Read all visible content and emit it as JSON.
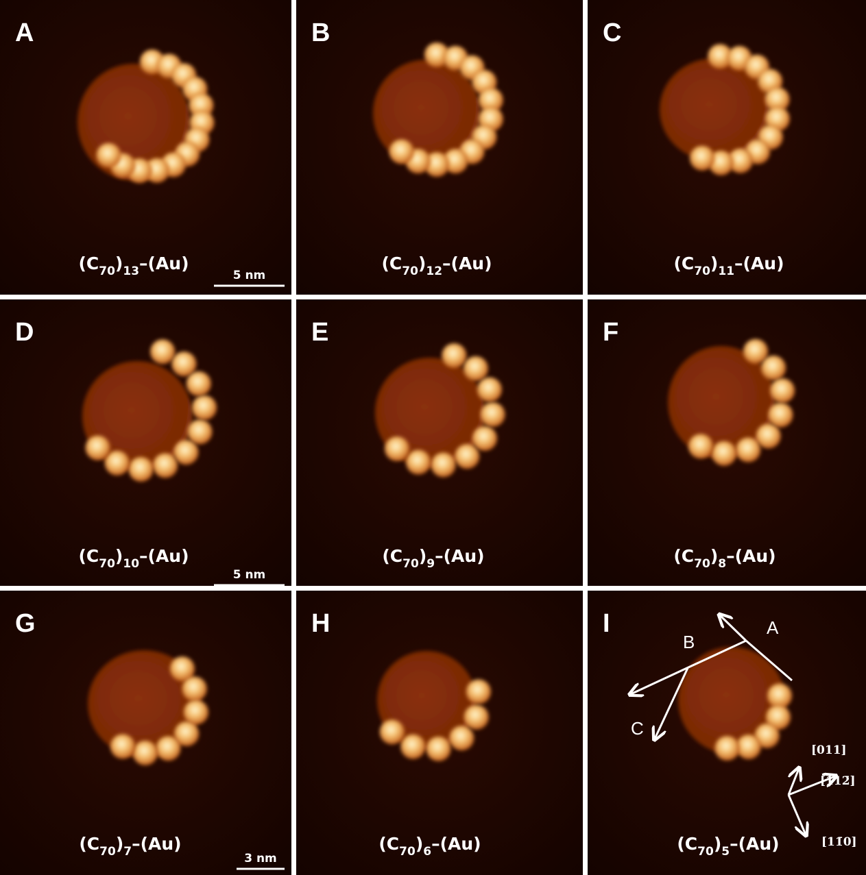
{
  "panels": [
    {
      "letter": "A",
      "formula": {
        "open": "(C",
        "carbon": "70",
        "close": ")",
        "count": "13",
        "tail": "–(Au)"
      },
      "scale_bar": "5 nm"
    },
    {
      "letter": "B",
      "formula": {
        "open": "(C",
        "carbon": "70",
        "close": ")",
        "count": "12",
        "tail": "–(Au)"
      }
    },
    {
      "letter": "C",
      "formula": {
        "open": "(C",
        "carbon": "70",
        "close": ")",
        "count": "11",
        "tail": "–(Au)"
      }
    },
    {
      "letter": "D",
      "formula": {
        "open": "(C",
        "carbon": "70",
        "close": ")",
        "count": "10",
        "tail": "–(Au)"
      },
      "scale_bar": "5 nm"
    },
    {
      "letter": "E",
      "formula": {
        "open": "(C",
        "carbon": "70",
        "close": ")",
        "count": "9",
        "tail": "–(Au)"
      }
    },
    {
      "letter": "F",
      "formula": {
        "open": "(C",
        "carbon": "70",
        "close": ")",
        "count": "8",
        "tail": "–(Au)"
      }
    },
    {
      "letter": "G",
      "formula": {
        "open": "(C",
        "carbon": "70",
        "close": ")",
        "count": "7",
        "tail": "–(Au)"
      },
      "scale_bar": "3 nm"
    },
    {
      "letter": "H",
      "formula": {
        "open": "(C",
        "carbon": "70",
        "close": ")",
        "count": "6",
        "tail": "–(Au)"
      }
    },
    {
      "letter": "I",
      "formula": {
        "open": "(C",
        "carbon": "70",
        "close": ")",
        "count": "5",
        "tail": "–(Au)"
      }
    }
  ],
  "panel_i_annotations": {
    "facets": [
      "A",
      "B",
      "C"
    ],
    "directions": [
      "[011]",
      "[112̄]",
      "[11̄0]"
    ]
  }
}
